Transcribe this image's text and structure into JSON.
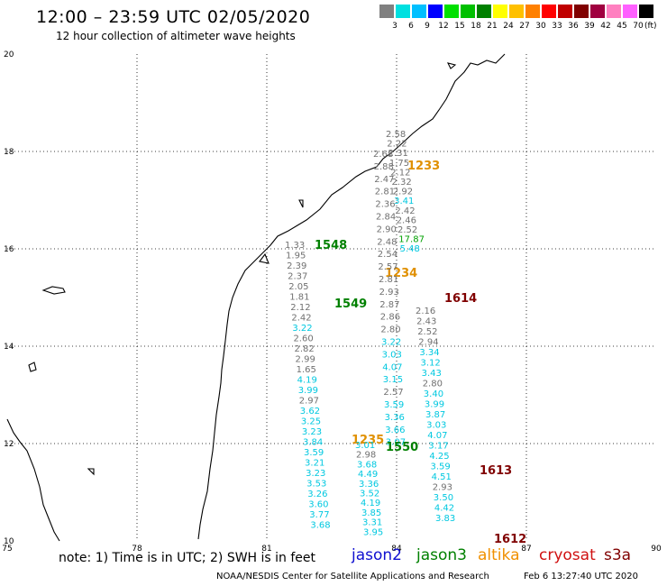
{
  "header": {
    "title": "12:00 – 23:59 UTC 02/05/2020",
    "subtitle": "12 hour collection of altimeter wave heights"
  },
  "legend": {
    "colors": [
      "#808080",
      "#00e0e0",
      "#00c0ff",
      "#0000ff",
      "#00e000",
      "#00c000",
      "#008000",
      "#ffff00",
      "#ffc000",
      "#ff8000",
      "#ff0000",
      "#c00000",
      "#800000",
      "#a00040",
      "#ff80c0",
      "#ff60ff",
      "#000000"
    ],
    "levels": [
      "3",
      "6",
      "9",
      "12",
      "15",
      "18",
      "21",
      "24",
      "27",
      "30",
      "33",
      "36",
      "39",
      "42",
      "45",
      "70"
    ],
    "unit": "(ft)"
  },
  "map": {
    "lon_ticks": [
      "75",
      "78",
      "81",
      "84",
      "87",
      "90"
    ],
    "lat_ticks": [
      "20",
      "18",
      "16",
      "14",
      "12",
      "10"
    ],
    "swh_colors": {
      "gray": "#707070",
      "cyan": "#00c8e0",
      "green": "#00a000"
    },
    "tracks": [
      {
        "pass_label": "1233",
        "pass_color": "#e09000",
        "values": [
          "2.58",
          "2.22",
          "2.31",
          "1.75",
          "2.12",
          "2.32",
          "2.92",
          "3.41",
          "2.42",
          "2.46",
          "2.52",
          "17.87",
          "5.48"
        ]
      },
      {
        "pass_label": "1548",
        "pass_color": "#008000",
        "values": [
          "1.33",
          "1.95",
          "2.39",
          "2.37",
          "2.05",
          "1.81",
          "2.12",
          "2.42",
          "3.22",
          "2.60",
          "2.82",
          "2.99",
          "1.65",
          "4.19",
          "3.99",
          "2.97",
          "3.62",
          "3.25",
          "3.23",
          "3.84",
          "3.59",
          "3.21",
          "3.23",
          "3.53",
          "3.26",
          "3.60",
          "3.77",
          "3.68"
        ]
      },
      {
        "pass_label": "1234",
        "pass_color": "#e09000",
        "values": []
      },
      {
        "pass_label": "1549",
        "pass_color": "#008000",
        "values": [
          "2.68",
          "2.88",
          "2.47",
          "2.81",
          "2.36",
          "2.84",
          "2.90",
          "2.48",
          "2.54",
          "2.57",
          "2.81",
          "2.93",
          "2.87",
          "2.86",
          "2.80",
          "3.22",
          "3.03",
          "4.07",
          "3.15",
          "2.57",
          "3.59",
          "3.36",
          "3.66",
          "3.07"
        ]
      },
      {
        "pass_label": "1614",
        "pass_color": "#800000",
        "values": [
          "2.16",
          "2.43",
          "2.52",
          "2.94",
          "3.34",
          "3.12",
          "3.43",
          "2.80",
          "3.40",
          "3.99",
          "3.87",
          "3.03",
          "4.07",
          "3.17",
          "4.25",
          "3.59",
          "4.51",
          "2.93",
          "3.50",
          "4.42",
          "3.83"
        ]
      },
      {
        "pass_label": "1235",
        "pass_color": "#e09000",
        "values": []
      },
      {
        "pass_label": "1550",
        "pass_color": "#008000",
        "values": [
          "3.01",
          "2.98",
          "3.68",
          "4.49",
          "3.36",
          "3.52",
          "4.19",
          "3.85",
          "3.31",
          "3.95"
        ]
      },
      {
        "pass_label": "1613",
        "pass_color": "#800000",
        "values": []
      },
      {
        "pass_label": "1612",
        "pass_color": "#800000",
        "values": []
      }
    ]
  },
  "footer": {
    "note": "note: 1) Time is in UTC; 2) SWH is in feet",
    "satellites": [
      {
        "name": "jason2",
        "color": "#1010d0"
      },
      {
        "name": "jason3",
        "color": "#008000"
      },
      {
        "name": "altika",
        "color": "#f09000"
      },
      {
        "name": "cryosat",
        "color": "#d01010"
      },
      {
        "name": "s3a",
        "color": "#800000"
      }
    ],
    "credit": "NOAA/NESDIS Center for Satellite Applications and Research",
    "timestamp": "Feb  6 13:27:40 UTC 2020"
  }
}
